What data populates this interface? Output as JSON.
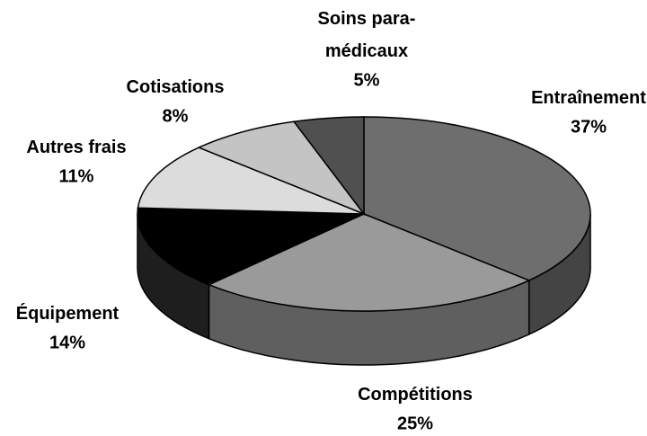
{
  "chart_data": {
    "type": "pie",
    "categories": [
      "Entraînement",
      "Compétitions",
      "Équipement",
      "Autres frais",
      "Cotisations",
      "Soins para-médicaux"
    ],
    "values": [
      37,
      25,
      14,
      11,
      8,
      5
    ],
    "value_labels": [
      "37%",
      "25%",
      "14%",
      "11%",
      "8%",
      "5%"
    ],
    "colors": [
      "#6e6e6e",
      "#9a9a9a",
      "#000000",
      "#dcdcdc",
      "#c4c4c4",
      "#505050"
    ]
  }
}
